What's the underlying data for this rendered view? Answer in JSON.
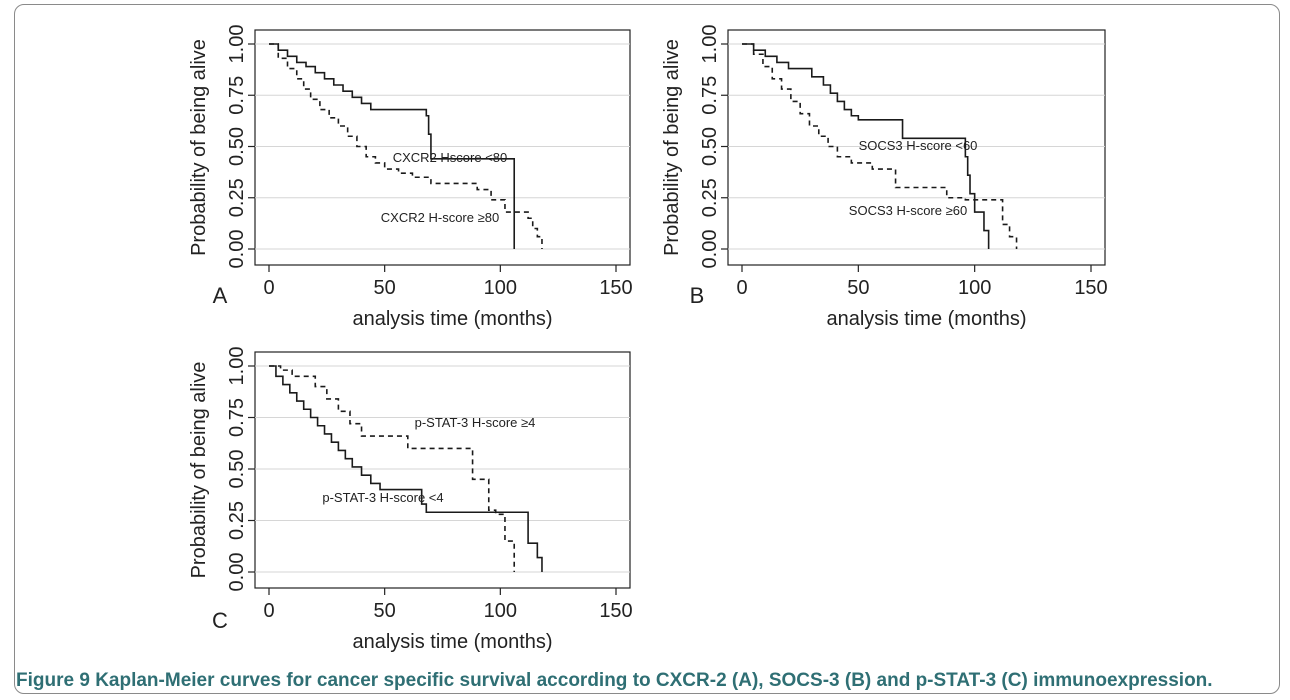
{
  "caption": {
    "label": "Figure 9",
    "text": "Kaplan-Meier curves for cancer specific survival according to CXCR-2 (A), SOCS-3 (B) and p-STAT-3 (C) immunoexpression."
  },
  "colors": {
    "line": "#1a1a1a",
    "grid": "#d6d6d6",
    "caption": "#2f6f74",
    "frame": "#8a8a8a"
  },
  "chart_data": [
    {
      "type": "line",
      "panel_label": "A",
      "xlabel": "analysis time (months)",
      "ylabel": "Probability of being alive",
      "xlim": [
        0,
        150
      ],
      "ylim": [
        0,
        1
      ],
      "xticks": [
        "0",
        "50",
        "100",
        "150"
      ],
      "yticks": [
        "0.00",
        "0.25",
        "0.50",
        "0.75",
        "1.00"
      ],
      "grid": true,
      "series": [
        {
          "name": "CXCR2 Hscore <80",
          "style": "solid",
          "x": [
            0,
            4,
            8,
            12,
            16,
            20,
            24,
            28,
            32,
            36,
            40,
            44,
            68,
            69,
            70,
            106,
            106
          ],
          "y": [
            1.0,
            0.97,
            0.94,
            0.91,
            0.89,
            0.86,
            0.83,
            0.8,
            0.77,
            0.74,
            0.71,
            0.68,
            0.65,
            0.56,
            0.44,
            0.44,
            0.0
          ]
        },
        {
          "name": "CXCR2 H-score ≥80",
          "style": "dashed",
          "x": [
            0,
            4,
            8,
            12,
            15,
            18,
            22,
            26,
            30,
            34,
            38,
            42,
            46,
            50,
            56,
            62,
            70,
            90,
            96,
            102,
            112,
            114,
            116,
            118
          ],
          "y": [
            1.0,
            0.93,
            0.88,
            0.83,
            0.78,
            0.73,
            0.68,
            0.64,
            0.6,
            0.55,
            0.5,
            0.45,
            0.42,
            0.39,
            0.37,
            0.35,
            0.32,
            0.29,
            0.24,
            0.18,
            0.15,
            0.1,
            0.06,
            0.0
          ]
        }
      ],
      "annotations": [
        "CXCR2 Hscore <80",
        "CXCR2 H-score ≥80"
      ]
    },
    {
      "type": "line",
      "panel_label": "B",
      "xlabel": "analysis time (months)",
      "ylabel": "Probability of being alive",
      "xlim": [
        0,
        150
      ],
      "ylim": [
        0,
        1
      ],
      "xticks": [
        "0",
        "50",
        "100",
        "150"
      ],
      "yticks": [
        "0.00",
        "0.25",
        "0.50",
        "0.75",
        "1.00"
      ],
      "grid": true,
      "series": [
        {
          "name": "SOCS3 H-score <60",
          "style": "solid",
          "x": [
            0,
            5,
            10,
            15,
            20,
            30,
            35,
            38,
            41,
            44,
            47,
            50,
            69,
            96,
            97,
            98,
            100,
            104,
            106
          ],
          "y": [
            1.0,
            0.97,
            0.94,
            0.91,
            0.88,
            0.84,
            0.8,
            0.76,
            0.72,
            0.68,
            0.65,
            0.63,
            0.54,
            0.45,
            0.36,
            0.27,
            0.18,
            0.09,
            0.0
          ]
        },
        {
          "name": "SOCS3 H-score ≥60",
          "style": "dashed",
          "x": [
            0,
            5,
            9,
            13,
            17,
            21,
            25,
            29,
            33,
            37,
            41,
            47,
            56,
            66,
            88,
            96,
            112,
            115,
            118
          ],
          "y": [
            1.0,
            0.95,
            0.89,
            0.83,
            0.78,
            0.72,
            0.66,
            0.6,
            0.55,
            0.5,
            0.45,
            0.42,
            0.39,
            0.3,
            0.25,
            0.24,
            0.12,
            0.06,
            0.0
          ]
        }
      ],
      "annotations": [
        "SOCS3 H-score <60",
        "SOCS3 H-score ≥60"
      ]
    },
    {
      "type": "line",
      "panel_label": "C",
      "xlabel": "analysis time (months)",
      "ylabel": "Probability of being alive",
      "xlim": [
        0,
        150
      ],
      "ylim": [
        0,
        1
      ],
      "xticks": [
        "0",
        "50",
        "100",
        "150"
      ],
      "yticks": [
        "0.00",
        "0.25",
        "0.50",
        "0.75",
        "1.00"
      ],
      "grid": true,
      "series": [
        {
          "name": "p-STAT-3 H-score <4",
          "style": "solid",
          "x": [
            0,
            3,
            6,
            9,
            12,
            15,
            18,
            21,
            24,
            27,
            30,
            33,
            36,
            40,
            44,
            48,
            66,
            68,
            112,
            116,
            118
          ],
          "y": [
            1.0,
            0.95,
            0.91,
            0.87,
            0.83,
            0.79,
            0.75,
            0.71,
            0.67,
            0.63,
            0.59,
            0.55,
            0.51,
            0.47,
            0.43,
            0.4,
            0.33,
            0.29,
            0.14,
            0.07,
            0.0
          ]
        },
        {
          "name": "p-STAT-3 H-score ≥4",
          "style": "dashed",
          "x": [
            0,
            5,
            10,
            20,
            25,
            30,
            35,
            40,
            60,
            88,
            95,
            98,
            102,
            106
          ],
          "y": [
            1.0,
            0.98,
            0.95,
            0.9,
            0.84,
            0.78,
            0.72,
            0.66,
            0.6,
            0.45,
            0.3,
            0.28,
            0.15,
            0.0
          ]
        }
      ],
      "annotations": [
        "p-STAT-3 H-score ≥4",
        "p-STAT-3 H-score <4"
      ]
    }
  ]
}
